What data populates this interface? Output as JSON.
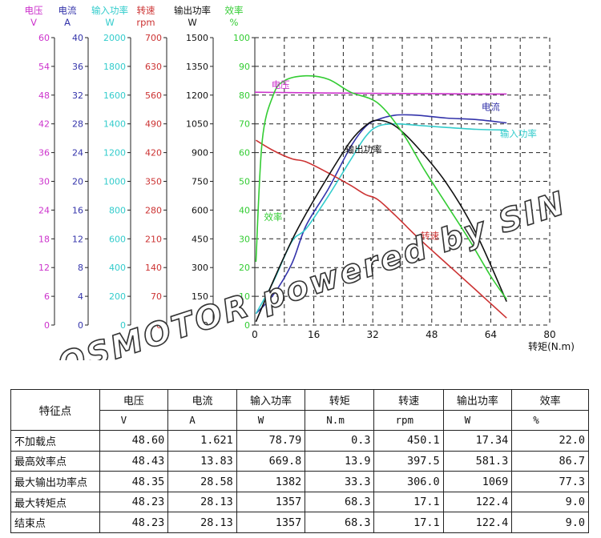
{
  "chart_data": {
    "type": "line",
    "xlabel": "转矩(N.m)",
    "x_ticks": [
      "0",
      "16",
      "32",
      "48",
      "64",
      "80"
    ],
    "xlim": [
      0,
      80
    ],
    "grid": "dashed",
    "axes": [
      {
        "key": "voltage",
        "title": "电压",
        "unit": "V",
        "color": "#cc33cc",
        "ticks": [
          "0",
          "6",
          "12",
          "18",
          "24",
          "30",
          "36",
          "42",
          "48",
          "54",
          "60"
        ]
      },
      {
        "key": "current",
        "title": "电流",
        "unit": "A",
        "color": "#3333aa",
        "ticks": [
          "0",
          "4",
          "8",
          "12",
          "16",
          "20",
          "24",
          "28",
          "32",
          "36",
          "40"
        ]
      },
      {
        "key": "input_power",
        "title": "输入功率",
        "unit": "W",
        "color": "#33cccc",
        "ticks": [
          "0",
          "200",
          "400",
          "600",
          "800",
          "1000",
          "1200",
          "1400",
          "1600",
          "1800",
          "2000"
        ]
      },
      {
        "key": "speed",
        "title": "转速",
        "unit": "rpm",
        "color": "#cc3333",
        "ticks": [
          "0",
          "70",
          "140",
          "210",
          "280",
          "350",
          "420",
          "490",
          "560",
          "630",
          "700"
        ]
      },
      {
        "key": "output_power",
        "title": "输出功率",
        "unit": "W",
        "color": "#111111",
        "ticks": [
          "0",
          "150",
          "300",
          "450",
          "600",
          "750",
          "900",
          "1050",
          "1200",
          "1350",
          "1500"
        ]
      },
      {
        "key": "efficiency",
        "title": "效率",
        "unit": "%",
        "color": "#33cc33",
        "ticks": [
          "0",
          "10",
          "20",
          "30",
          "40",
          "50",
          "60",
          "70",
          "80",
          "90",
          "100"
        ]
      }
    ],
    "series": [
      {
        "name": "电压",
        "axis": "voltage",
        "color": "#cc33cc",
        "points": [
          [
            0,
            48.6
          ],
          [
            10,
            48.52
          ],
          [
            20,
            48.44
          ],
          [
            30,
            48.38
          ],
          [
            40,
            48.33
          ],
          [
            50,
            48.28
          ],
          [
            60,
            48.24
          ],
          [
            68.3,
            48.23
          ]
        ]
      },
      {
        "name": "电流",
        "axis": "current",
        "color": "#3333aa",
        "points": [
          [
            0.3,
            1.6
          ],
          [
            5,
            4.2
          ],
          [
            10,
            8.5
          ],
          [
            13.9,
            13.83
          ],
          [
            20,
            19.0
          ],
          [
            26,
            24.8
          ],
          [
            30,
            27.6
          ],
          [
            33.3,
            28.58
          ],
          [
            38,
            29.2
          ],
          [
            44,
            29.2
          ],
          [
            52,
            28.8
          ],
          [
            60,
            28.6
          ],
          [
            68.3,
            28.13
          ]
        ]
      },
      {
        "name": "输入功率",
        "axis": "input_power",
        "color": "#33cccc",
        "points": [
          [
            0.3,
            78.8
          ],
          [
            5,
            300
          ],
          [
            10,
            580
          ],
          [
            13.9,
            669.8
          ],
          [
            20,
            900
          ],
          [
            26,
            1150
          ],
          [
            30,
            1310
          ],
          [
            33.3,
            1382
          ],
          [
            38,
            1400
          ],
          [
            44,
            1390
          ],
          [
            52,
            1375
          ],
          [
            60,
            1362
          ],
          [
            68.3,
            1357
          ]
        ]
      },
      {
        "name": "转速",
        "axis": "speed",
        "color": "#cc3333",
        "points": [
          [
            0.3,
            450.1
          ],
          [
            5,
            425
          ],
          [
            10,
            405
          ],
          [
            13.9,
            397.5
          ],
          [
            20,
            370
          ],
          [
            26,
            340
          ],
          [
            30,
            318
          ],
          [
            33.3,
            306.0
          ],
          [
            38,
            268
          ],
          [
            44,
            215
          ],
          [
            52,
            150
          ],
          [
            60,
            85
          ],
          [
            68.3,
            17.1
          ]
        ]
      },
      {
        "name": "输出功率",
        "axis": "output_power",
        "color": "#111111",
        "points": [
          [
            0.3,
            17.34
          ],
          [
            5,
            230
          ],
          [
            10,
            440
          ],
          [
            13.9,
            581.3
          ],
          [
            20,
            780
          ],
          [
            26,
            960
          ],
          [
            30,
            1040
          ],
          [
            33.3,
            1069
          ],
          [
            38,
            1040
          ],
          [
            44,
            930
          ],
          [
            52,
            740
          ],
          [
            60,
            480
          ],
          [
            68.3,
            122.4
          ]
        ]
      },
      {
        "name": "效率",
        "axis": "efficiency",
        "color": "#33cc33",
        "points": [
          [
            0.3,
            22.0
          ],
          [
            2,
            64
          ],
          [
            5,
            80
          ],
          [
            8,
            85
          ],
          [
            13.9,
            86.7
          ],
          [
            20,
            85.5
          ],
          [
            26,
            81
          ],
          [
            33.3,
            77.3
          ],
          [
            40,
            67
          ],
          [
            46,
            54
          ],
          [
            52,
            42
          ],
          [
            58,
            30
          ],
          [
            64,
            17
          ],
          [
            68.3,
            9.0
          ]
        ]
      }
    ],
    "curve_labels": [
      {
        "text": "电压",
        "x": 4.5,
        "y_axis": "voltage",
        "y": 49.5,
        "color": "#cc33cc"
      },
      {
        "text": "电流",
        "x": 61.5,
        "y_axis": "current",
        "y": 29.9,
        "color": "#3333aa"
      },
      {
        "text": "输入功率",
        "x": 66.5,
        "y_axis": "input_power",
        "y": 1310,
        "color": "#33cccc"
      },
      {
        "text": "输出功率",
        "x": 24.5,
        "y_axis": "output_power",
        "y": 900,
        "color": "#111111"
      },
      {
        "text": "效率",
        "x": 2.5,
        "y_axis": "efficiency",
        "y": 36.5,
        "color": "#33cc33"
      },
      {
        "text": "转速",
        "x": 45,
        "y_axis": "speed",
        "y": 210,
        "color": "#cc3333"
      }
    ],
    "watermark": "QSMOTOR powered by SIN"
  },
  "table": {
    "corner": "特征点",
    "columns": [
      "电压",
      "电流",
      "输入功率",
      "转矩",
      "转速",
      "输出功率",
      "效率"
    ],
    "units": [
      "V",
      "A",
      "W",
      "N.m",
      "rpm",
      "W",
      "%"
    ],
    "rows": [
      {
        "label": "不加载点",
        "values": [
          "48.60",
          "1.621",
          "78.79",
          "0.3",
          "450.1",
          "17.34",
          "22.0"
        ]
      },
      {
        "label": "最高效率点",
        "values": [
          "48.43",
          "13.83",
          "669.8",
          "13.9",
          "397.5",
          "581.3",
          "86.7"
        ]
      },
      {
        "label": "最大输出功率点",
        "values": [
          "48.35",
          "28.58",
          "1382",
          "33.3",
          "306.0",
          "1069",
          "77.3"
        ]
      },
      {
        "label": "最大转矩点",
        "values": [
          "48.23",
          "28.13",
          "1357",
          "68.3",
          "17.1",
          "122.4",
          "9.0"
        ]
      },
      {
        "label": "结束点",
        "values": [
          "48.23",
          "28.13",
          "1357",
          "68.3",
          "17.1",
          "122.4",
          "9.0"
        ]
      }
    ]
  }
}
